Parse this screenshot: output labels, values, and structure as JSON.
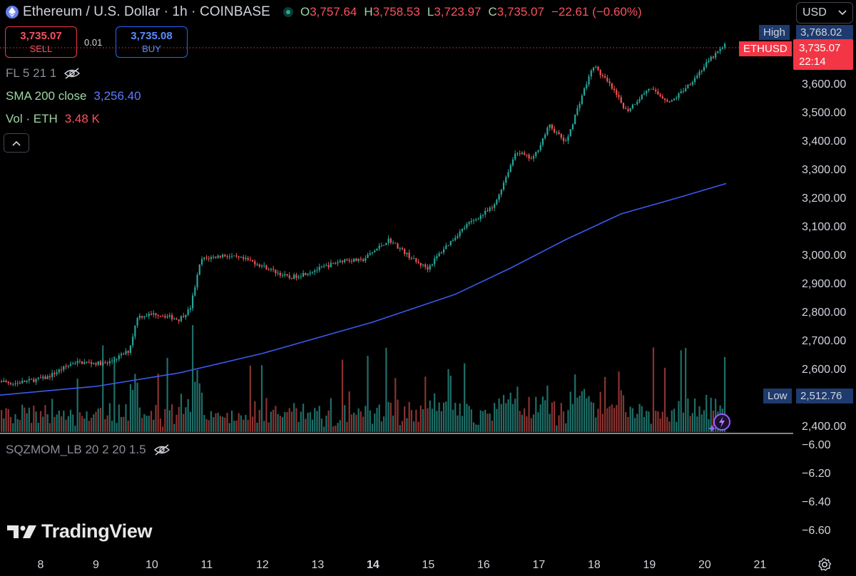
{
  "header": {
    "title": "Ethereum / U.S. Dollar · 1h · COINBASE",
    "ohlc": {
      "open_label": "O",
      "open": "3,757.64",
      "high_label": "H",
      "high": "3,758.53",
      "low_label": "L",
      "low": "3,723.97",
      "close_label": "C",
      "close": "3,735.07",
      "change": "−22.61 (−0.60%)"
    }
  },
  "currency_selector": {
    "value": "USD"
  },
  "trade": {
    "sell_price": "3,735.07",
    "sell_label": "SELL",
    "spread": "0.01",
    "buy_price": "3,735.08",
    "buy_label": "BUY"
  },
  "indicators": {
    "fl": "FL 5 21 1",
    "sma_name": "SMA 200 close",
    "sma_value": "3,256.40",
    "vol_name": "Vol · ETH",
    "vol_value": "3.48 K",
    "sqz": "SQZMOM_LB 20 2 20 1.5"
  },
  "price_axis": {
    "ticks": [
      "3,600.00",
      "3,500.00",
      "3,400.00",
      "3,300.00",
      "3,200.00",
      "3,100.00",
      "3,000.00",
      "2,900.00",
      "2,800.00",
      "2,700.00",
      "2,600.00",
      "2,400.00"
    ],
    "high_label": "High",
    "high_value": "3,768.02",
    "low_label": "Low",
    "low_value": "2,512.76",
    "symbol_tag": "ETHUSD",
    "last_price": "3,735.07",
    "countdown": "22:14"
  },
  "osc_axis": {
    "ticks": [
      "−6.00",
      "−6.20",
      "−6.40",
      "−6.60"
    ]
  },
  "time_axis": {
    "labels": [
      "8",
      "9",
      "10",
      "11",
      "12",
      "13",
      "14",
      "15",
      "16",
      "17",
      "18",
      "19",
      "20",
      "21"
    ]
  },
  "branding": {
    "logo_text": "TradingView"
  },
  "colors": {
    "up": "#26a69a",
    "down": "#ef5350",
    "sma": "#2962ff",
    "axis_text": "#d1d4dc",
    "green_text": "#9fd6a6",
    "price_tag": "#f23645",
    "range_tag": "#1e3a6e"
  },
  "chart_data": {
    "type": "candlestick",
    "symbol": "ETHUSD",
    "interval": "1h",
    "x_range": [
      "7",
      "21"
    ],
    "y_range": [
      2400,
      3800
    ],
    "anchors": [
      {
        "day": 7.0,
        "price": 2575
      },
      {
        "day": 7.5,
        "price": 2555
      },
      {
        "day": 8.1,
        "price": 2575
      },
      {
        "day": 8.6,
        "price": 2630
      },
      {
        "day": 9.2,
        "price": 2625
      },
      {
        "day": 9.6,
        "price": 2670
      },
      {
        "day": 9.75,
        "price": 2790
      },
      {
        "day": 10.1,
        "price": 2800
      },
      {
        "day": 10.5,
        "price": 2780
      },
      {
        "day": 10.7,
        "price": 2815
      },
      {
        "day": 10.9,
        "price": 2990
      },
      {
        "day": 11.3,
        "price": 3005
      },
      {
        "day": 11.8,
        "price": 2985
      },
      {
        "day": 12.5,
        "price": 2925
      },
      {
        "day": 13.0,
        "price": 2955
      },
      {
        "day": 13.5,
        "price": 2990
      },
      {
        "day": 13.8,
        "price": 2985
      },
      {
        "day": 14.3,
        "price": 3060
      },
      {
        "day": 14.8,
        "price": 2980
      },
      {
        "day": 15.0,
        "price": 2960
      },
      {
        "day": 15.3,
        "price": 3030
      },
      {
        "day": 15.7,
        "price": 3110
      },
      {
        "day": 16.2,
        "price": 3175
      },
      {
        "day": 16.6,
        "price": 3370
      },
      {
        "day": 16.9,
        "price": 3340
      },
      {
        "day": 17.2,
        "price": 3460
      },
      {
        "day": 17.5,
        "price": 3400
      },
      {
        "day": 17.8,
        "price": 3570
      },
      {
        "day": 18.0,
        "price": 3670
      },
      {
        "day": 18.3,
        "price": 3600
      },
      {
        "day": 18.6,
        "price": 3510
      },
      {
        "day": 19.0,
        "price": 3590
      },
      {
        "day": 19.4,
        "price": 3540
      },
      {
        "day": 19.8,
        "price": 3620
      },
      {
        "day": 20.1,
        "price": 3690
      },
      {
        "day": 20.4,
        "price": 3745
      }
    ],
    "sma_200": [
      {
        "day": 7.0,
        "price": 2510
      },
      {
        "day": 9.0,
        "price": 2545
      },
      {
        "day": 10.5,
        "price": 2592
      },
      {
        "day": 12.0,
        "price": 2660
      },
      {
        "day": 14.0,
        "price": 2770
      },
      {
        "day": 15.5,
        "price": 2868
      },
      {
        "day": 16.5,
        "price": 2960
      },
      {
        "day": 17.5,
        "price": 3060
      },
      {
        "day": 18.5,
        "price": 3150
      },
      {
        "day": 19.5,
        "price": 3205
      },
      {
        "day": 20.4,
        "price": 3256.4
      }
    ],
    "high": 3768.02,
    "low": 2512.76,
    "last_price": 3735.07
  }
}
